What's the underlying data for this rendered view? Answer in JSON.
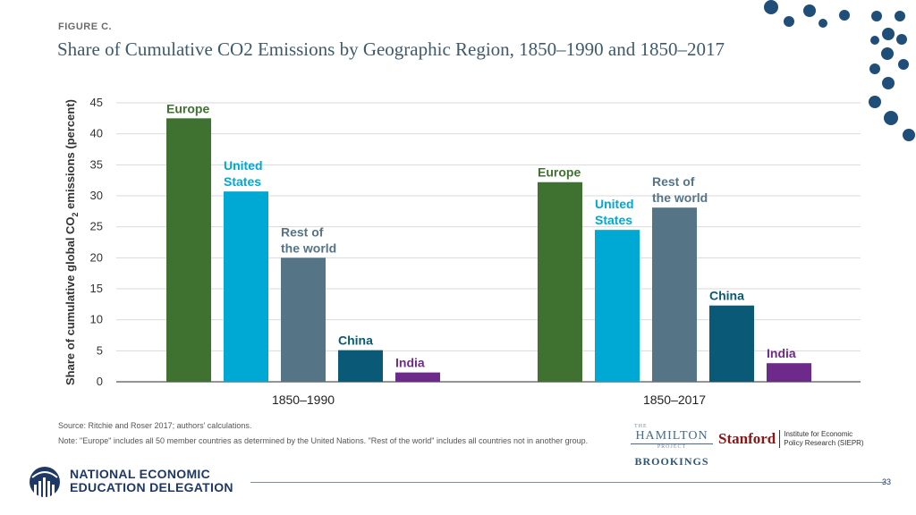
{
  "figure_label": "FIGURE C.",
  "figure_title": "Share of Cumulative CO2 Emissions by Geographic Region, 1850–1990 and 1850–2017",
  "chart_data": {
    "type": "bar",
    "title": "Share of Cumulative CO2 Emissions by Geographic Region, 1850–1990 and 1850–2017",
    "ylabel_parts": [
      "Share of cumulative global CO",
      "2",
      " emissions (percent)"
    ],
    "ylim": [
      0,
      45
    ],
    "yticks": [
      0,
      5,
      10,
      15,
      20,
      25,
      30,
      35,
      40,
      45
    ],
    "grid": true,
    "groups": [
      {
        "label": "1850–1990",
        "bars": [
          {
            "name": "Europe",
            "label_lines": [
              "Europe"
            ],
            "value": 42.5,
            "color": "#3f7131",
            "label_color": "#3f7131"
          },
          {
            "name": "United States",
            "label_lines": [
              "United",
              "States"
            ],
            "value": 30.7,
            "color": "#00a8d4",
            "label_color": "#00a8d4"
          },
          {
            "name": "Rest of the world",
            "label_lines": [
              "Rest of",
              "the world"
            ],
            "value": 20.0,
            "color": "#557486",
            "label_color": "#557486"
          },
          {
            "name": "China",
            "label_lines": [
              "China"
            ],
            "value": 5.1,
            "color": "#0a5a77",
            "label_color": "#0a5a77"
          },
          {
            "name": "India",
            "label_lines": [
              "India"
            ],
            "value": 1.5,
            "color": "#6e2a8a",
            "label_color": "#6e2a8a"
          }
        ]
      },
      {
        "label": "1850–2017",
        "bars": [
          {
            "name": "Europe",
            "label_lines": [
              "Europe"
            ],
            "value": 32.2,
            "color": "#3f7131",
            "label_color": "#3f7131"
          },
          {
            "name": "United States",
            "label_lines": [
              "United",
              "States"
            ],
            "value": 24.5,
            "color": "#00a8d4",
            "label_color": "#00a8d4"
          },
          {
            "name": "Rest of the world",
            "label_lines": [
              "Rest of",
              "the world"
            ],
            "value": 28.1,
            "color": "#557486",
            "label_color": "#557486"
          },
          {
            "name": "China",
            "label_lines": [
              "China"
            ],
            "value": 12.3,
            "color": "#0a5a77",
            "label_color": "#0a5a77"
          },
          {
            "name": "India",
            "label_lines": [
              "India"
            ],
            "value": 3.0,
            "color": "#6e2a8a",
            "label_color": "#6e2a8a"
          }
        ]
      }
    ]
  },
  "source": "Source: Ritchie and Roser 2017; authors' calculations.",
  "note": "Note: \"Europe\" includes all 50 member countries as determined by the United Nations. \"Rest of the world\" includes all countries not in another group.",
  "logos": {
    "hamilton_top": "THE",
    "hamilton_name": "HAMILTON",
    "hamilton_project": "PROJECT",
    "brookings": "BROOKINGS",
    "stanford": "Stanford",
    "stanford_institute": "Institute for Economic Policy Research (SIEPR)"
  },
  "footer": {
    "org_line1": "NATIONAL ECONOMIC",
    "org_line2": "EDUCATION DELEGATION",
    "page_number": "33"
  },
  "colors": {
    "accent_dots": "#1f4e79",
    "title": "#3f5a6b"
  }
}
